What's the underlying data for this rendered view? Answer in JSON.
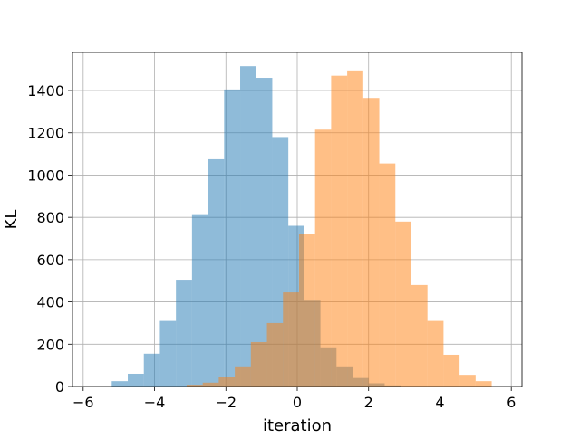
{
  "chart_data": {
    "type": "bar",
    "subtype": "histogram",
    "xlabel": "iteration",
    "ylabel": "KL",
    "xlim": [
      -6.3,
      6.3
    ],
    "ylim": [
      0,
      1580
    ],
    "xticks": [
      -6,
      -4,
      -2,
      0,
      2,
      4,
      6
    ],
    "yticks": [
      0,
      200,
      400,
      600,
      800,
      1000,
      1200,
      1400
    ],
    "grid": true,
    "legend": "none",
    "series": [
      {
        "color": "#1f77b4",
        "alpha": 0.5,
        "bins": [
          [
            -5.2,
            -4.75,
            25
          ],
          [
            -4.75,
            -4.3,
            60
          ],
          [
            -4.3,
            -3.85,
            155
          ],
          [
            -3.85,
            -3.4,
            310
          ],
          [
            -3.4,
            -2.95,
            505
          ],
          [
            -2.95,
            -2.5,
            815
          ],
          [
            -2.5,
            -2.05,
            1075
          ],
          [
            -2.05,
            -1.6,
            1405
          ],
          [
            -1.6,
            -1.15,
            1515
          ],
          [
            -1.15,
            -0.7,
            1460
          ],
          [
            -0.7,
            -0.25,
            1180
          ],
          [
            -0.25,
            0.2,
            760
          ],
          [
            0.2,
            0.65,
            410
          ],
          [
            0.65,
            1.1,
            185
          ],
          [
            1.1,
            1.55,
            95
          ],
          [
            1.55,
            2.0,
            40
          ],
          [
            2.0,
            2.45,
            15
          ],
          [
            2.45,
            2.9,
            5
          ]
        ]
      },
      {
        "color": "#ff7f0e",
        "alpha": 0.5,
        "bins": [
          [
            -3.1,
            -2.65,
            8
          ],
          [
            -2.65,
            -2.2,
            18
          ],
          [
            -2.2,
            -1.75,
            45
          ],
          [
            -1.75,
            -1.3,
            95
          ],
          [
            -1.3,
            -0.85,
            210
          ],
          [
            -0.85,
            -0.4,
            300
          ],
          [
            -0.4,
            0.05,
            445
          ],
          [
            0.05,
            0.5,
            720
          ],
          [
            0.5,
            0.95,
            1215
          ],
          [
            0.95,
            1.4,
            1470
          ],
          [
            1.4,
            1.85,
            1495
          ],
          [
            1.85,
            2.3,
            1365
          ],
          [
            2.3,
            2.75,
            1055
          ],
          [
            2.75,
            3.2,
            780
          ],
          [
            3.2,
            3.65,
            480
          ],
          [
            3.65,
            4.1,
            310
          ],
          [
            4.1,
            4.55,
            150
          ],
          [
            4.55,
            5.0,
            55
          ],
          [
            5.0,
            5.45,
            25
          ]
        ]
      }
    ]
  }
}
